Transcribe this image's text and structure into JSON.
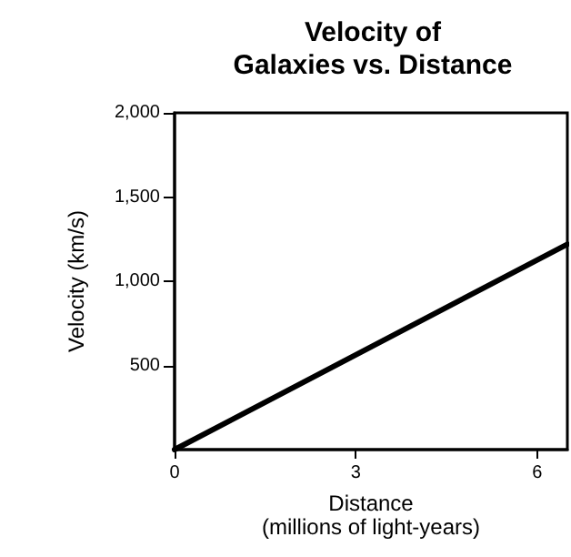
{
  "chart_data": {
    "type": "line",
    "title": "Velocity of\nGalaxies vs. Distance",
    "xlabel": "Distance\n(millions of light-years)",
    "ylabel": "Velocity (km/s)",
    "x": [
      0,
      6.5
    ],
    "series": [
      {
        "color": "#000000",
        "values": [
          0,
          1220
        ]
      }
    ],
    "xlim": [
      0,
      6.5
    ],
    "xticks": [
      0,
      3,
      6
    ],
    "ylim": [
      0,
      2000
    ],
    "yticks": [
      {
        "value": 500,
        "label": "500"
      },
      {
        "value": 1000,
        "label": "1,000"
      },
      {
        "value": 1500,
        "label": "1,500"
      },
      {
        "value": 2000,
        "label": "2,000"
      }
    ],
    "grid": false,
    "marker": "none",
    "line_style": "solid"
  }
}
